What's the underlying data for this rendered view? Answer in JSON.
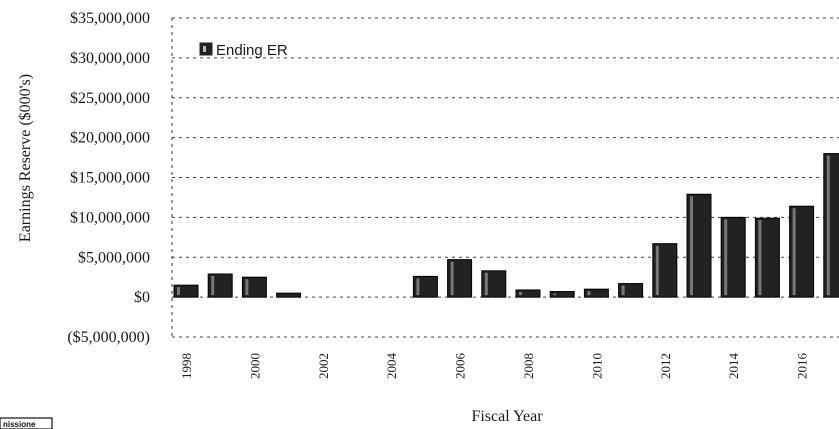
{
  "chart_data": {
    "type": "bar",
    "title": "",
    "xlabel": "Fiscal Year",
    "ylabel": "Earnings Reserve ($000's)",
    "ylim": [
      -5000000,
      35000000
    ],
    "yticks": [
      35000000,
      30000000,
      25000000,
      20000000,
      15000000,
      10000000,
      5000000,
      0,
      -5000000
    ],
    "ytick_labels": [
      "$35,000,000",
      "$30,000,000",
      "$25,000,000",
      "$20,000,000",
      "$15,000,000",
      "$10,000,000",
      "$5,000,000",
      "$0",
      "($5,000,000)"
    ],
    "categories": [
      "1998",
      "1999",
      "2000",
      "2001",
      "2002",
      "2003",
      "2004",
      "2005",
      "2006",
      "2007",
      "2008",
      "2009",
      "2010",
      "2011",
      "2012",
      "2013",
      "2014",
      "2015",
      "2016",
      "2017"
    ],
    "xtick_labels": [
      "1998",
      "2000",
      "2002",
      "2004",
      "2006",
      "2008",
      "2010",
      "2012",
      "2014",
      "2016"
    ],
    "series": [
      {
        "name": "Ending ER",
        "values": [
          1500000,
          2900000,
          2500000,
          500000,
          0,
          0,
          0,
          2600000,
          4700000,
          3300000,
          900000,
          700000,
          1000000,
          1700000,
          6700000,
          12900000,
          10000000,
          9900000,
          11400000,
          18000000
        ]
      }
    ],
    "legend": "top-left",
    "grid": true,
    "bar_color": "#222222"
  },
  "footer": {
    "logo_text": "nissione"
  }
}
